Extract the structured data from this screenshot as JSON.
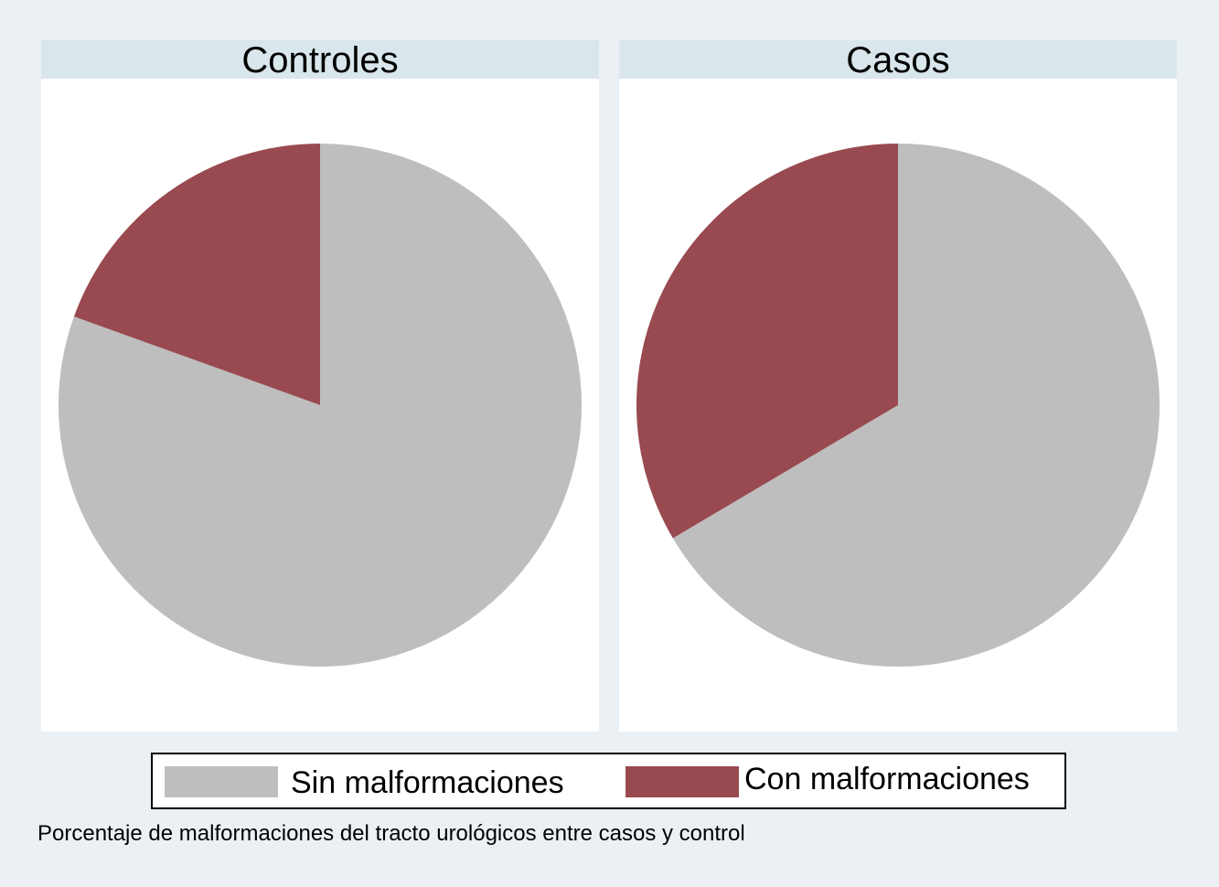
{
  "chart_data": [
    {
      "type": "pie",
      "title": "Controles",
      "categories": [
        "Sin malformaciones",
        "Con malformaciones"
      ],
      "values": [
        80.5,
        19.5
      ],
      "colors": [
        "#bebebe",
        "#984a50"
      ]
    },
    {
      "type": "pie",
      "title": "Casos",
      "categories": [
        "Sin malformaciones",
        "Con malformaciones"
      ],
      "values": [
        66.5,
        33.5
      ],
      "colors": [
        "#bebebe",
        "#984a50"
      ]
    }
  ],
  "legend": {
    "placement": "bottom",
    "items": [
      {
        "label": "Sin malformaciones",
        "color": "#bebebe"
      },
      {
        "label": "Con malformaciones",
        "color": "#984a50"
      }
    ]
  },
  "note": "Porcentaje de malformaciones del tracto urológicos entre casos y control"
}
